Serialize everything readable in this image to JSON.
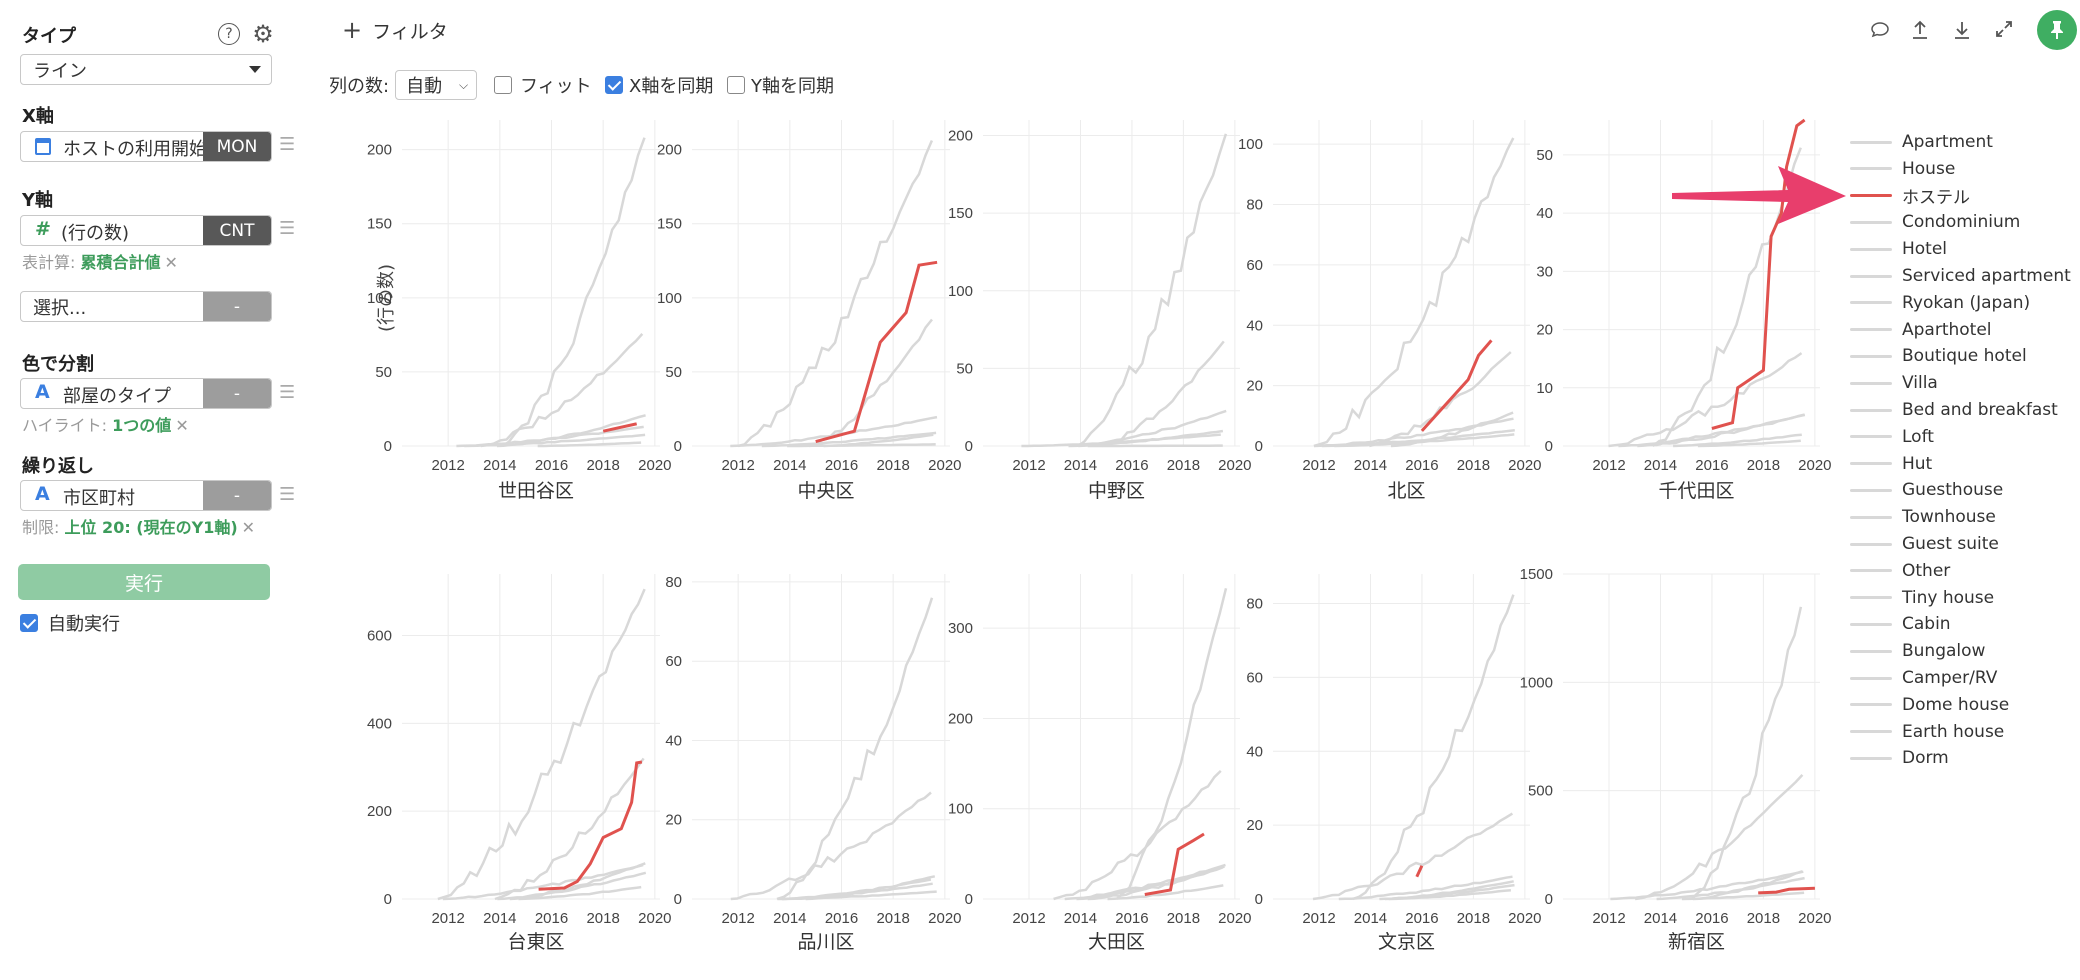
{
  "sidebar": {
    "type": {
      "label": "タイプ",
      "value": "ライン"
    },
    "xaxis": {
      "label": "X軸",
      "value": "ホストの利用開始日",
      "pill": "MON"
    },
    "yaxis": {
      "label": "Y軸",
      "value": "(行の数)",
      "pill": "CNT",
      "meta_prefix": "表計算: ",
      "meta_value": "累積合計値"
    },
    "select": {
      "value": "選択...",
      "pill": "-"
    },
    "color": {
      "label": "色で分割",
      "value": "部屋のタイプ",
      "pill": "-",
      "meta_prefix": "ハイライト: ",
      "meta_value": "1つの値"
    },
    "repeat": {
      "label": "繰り返し",
      "value": "市区町村",
      "pill": "-",
      "meta_prefix": "制限: ",
      "meta_value": "上位 20: (現在のY1軸)"
    },
    "run_label": "実行",
    "auto_run_label": "自動実行"
  },
  "toolbar": {
    "filter_label": "フィルタ",
    "columns_label": "列の数:",
    "columns_value": "自動",
    "fit_label": "フィット",
    "sync_x_label": "X軸を同期",
    "sync_y_label": "Y軸を同期"
  },
  "y_axis_title": "(行の数)",
  "legend": [
    "Apartment",
    "House",
    "ホステル",
    "Condominium",
    "Hotel",
    "Serviced apartment",
    "Ryokan (Japan)",
    "Aparthotel",
    "Boutique hotel",
    "Villa",
    "Bed and breakfast",
    "Loft",
    "Hut",
    "Guesthouse",
    "Townhouse",
    "Guest suite",
    "Other",
    "Tiny house",
    "Cabin",
    "Bungalow",
    "Camper/RV",
    "Dome house",
    "Earth house",
    "Dorm"
  ],
  "colors": {
    "highlight": "#e0524e",
    "other": "#d8d8d8",
    "run": "#8fcba3",
    "accent_green": "#3d9c5b",
    "pin": "#3fae62",
    "arrow": "#e83e6c"
  },
  "chart_data": [
    {
      "type": "line",
      "title": "世田谷区",
      "xticks": [
        "2012",
        "2014",
        "2016",
        "2018",
        "2020"
      ],
      "yticks": [
        "0",
        "50",
        "100",
        "150",
        "200"
      ],
      "ylim": [
        0,
        220
      ],
      "series": [
        {
          "name": "ホステル",
          "values": [
            [
              2018,
              10
            ],
            [
              2019.3,
              15
            ]
          ]
        }
      ]
    },
    {
      "type": "line",
      "title": "中央区",
      "xticks": [
        "2012",
        "2014",
        "2016",
        "2018",
        "2020"
      ],
      "yticks": [
        "0",
        "50",
        "100",
        "150",
        "200"
      ],
      "ylim": [
        0,
        220
      ],
      "series": [
        {
          "name": "ホステル",
          "values": [
            [
              2015,
              3
            ],
            [
              2016.5,
              10
            ],
            [
              2017.5,
              70
            ],
            [
              2018.5,
              90
            ],
            [
              2019,
              122
            ],
            [
              2019.7,
              124
            ]
          ]
        }
      ]
    },
    {
      "type": "line",
      "title": "中野区",
      "xticks": [
        "2012",
        "2014",
        "2016",
        "2018",
        "2020"
      ],
      "yticks": [
        "0",
        "50",
        "100",
        "150",
        "200"
      ],
      "ylim": [
        0,
        210
      ],
      "series": []
    },
    {
      "type": "line",
      "title": "北区",
      "xticks": [
        "2012",
        "2014",
        "2016",
        "2018",
        "2020"
      ],
      "yticks": [
        "0",
        "20",
        "40",
        "60",
        "80",
        "100"
      ],
      "ylim": [
        0,
        108
      ],
      "series": [
        {
          "name": "ホステル",
          "values": [
            [
              2016,
              5
            ],
            [
              2017.8,
              22
            ],
            [
              2018.2,
              30
            ],
            [
              2018.7,
              35
            ]
          ]
        }
      ]
    },
    {
      "type": "line",
      "title": "千代田区",
      "xticks": [
        "2012",
        "2014",
        "2016",
        "2018",
        "2020"
      ],
      "yticks": [
        "0",
        "10",
        "20",
        "30",
        "40",
        "50"
      ],
      "ylim": [
        0,
        56
      ],
      "series": [
        {
          "name": "ホステル",
          "values": [
            [
              2016,
              3
            ],
            [
              2016.8,
              4
            ],
            [
              2017,
              10
            ],
            [
              2018,
              13
            ],
            [
              2018.3,
              36
            ],
            [
              2018.7,
              40
            ],
            [
              2018.9,
              48
            ],
            [
              2019.3,
              55
            ],
            [
              2019.6,
              56
            ]
          ]
        }
      ]
    },
    {
      "type": "line",
      "title": "台東区",
      "xticks": [
        "2012",
        "2014",
        "2016",
        "2018",
        "2020"
      ],
      "yticks": [
        "0",
        "200",
        "400",
        "600"
      ],
      "ylim": [
        0,
        740
      ],
      "series": [
        {
          "name": "ホステル",
          "values": [
            [
              2015.5,
              22
            ],
            [
              2016.5,
              25
            ],
            [
              2017,
              40
            ],
            [
              2017.5,
              80
            ],
            [
              2018,
              140
            ],
            [
              2018.7,
              160
            ],
            [
              2019.1,
              220
            ],
            [
              2019.3,
              310
            ],
            [
              2019.5,
              312
            ]
          ]
        }
      ]
    },
    {
      "type": "line",
      "title": "品川区",
      "xticks": [
        "2012",
        "2014",
        "2016",
        "2018",
        "2020"
      ],
      "yticks": [
        "0",
        "20",
        "40",
        "60",
        "80"
      ],
      "ylim": [
        0,
        82
      ],
      "series": []
    },
    {
      "type": "line",
      "title": "大田区",
      "xticks": [
        "2012",
        "2014",
        "2016",
        "2018",
        "2020"
      ],
      "yticks": [
        "0",
        "100",
        "200",
        "300"
      ],
      "ylim": [
        0,
        360
      ],
      "series": [
        {
          "name": "ホステル",
          "values": [
            [
              2016.5,
              5
            ],
            [
              2017.5,
              10
            ],
            [
              2017.8,
              55
            ],
            [
              2018.4,
              65
            ],
            [
              2018.8,
              72
            ]
          ]
        }
      ]
    },
    {
      "type": "line",
      "title": "文京区",
      "xticks": [
        "2012",
        "2014",
        "2016",
        "2018",
        "2020"
      ],
      "yticks": [
        "0",
        "20",
        "40",
        "60",
        "80"
      ],
      "ylim": [
        0,
        88
      ],
      "series": [
        {
          "name": "ホステル",
          "values": [
            [
              2015.8,
              6
            ],
            [
              2016,
              9
            ]
          ]
        }
      ]
    },
    {
      "type": "line",
      "title": "新宿区",
      "xticks": [
        "2012",
        "2014",
        "2016",
        "2018",
        "2020"
      ],
      "yticks": [
        "0",
        "500",
        "1000",
        "1500"
      ],
      "ylim": [
        0,
        1500
      ],
      "series": [
        {
          "name": "ホステル",
          "values": [
            [
              2017.8,
              28
            ],
            [
              2018.5,
              32
            ],
            [
              2019,
              45
            ],
            [
              2020,
              50
            ]
          ]
        }
      ]
    }
  ]
}
